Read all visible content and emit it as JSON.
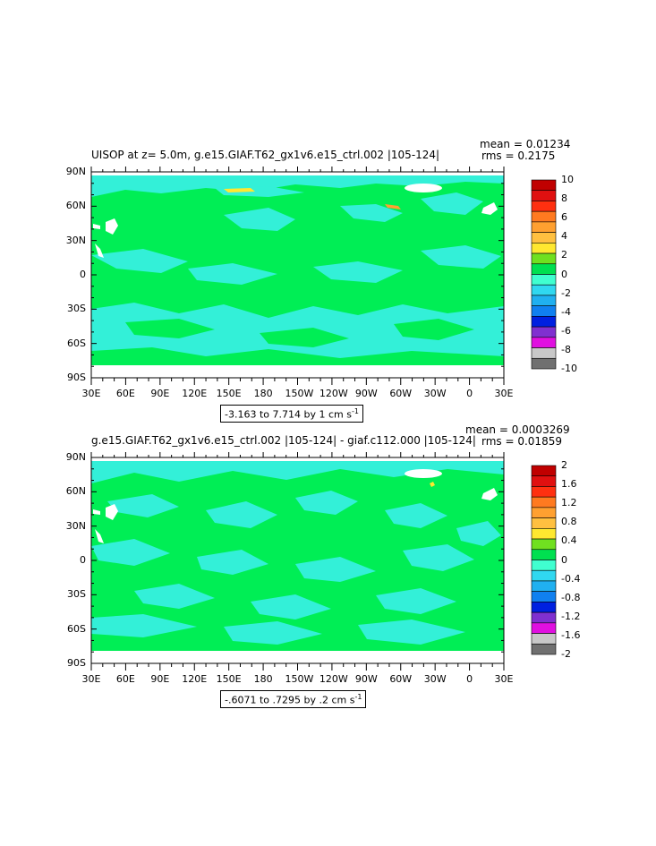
{
  "panels": [
    {
      "title": "UISOP at z=    5.0m, g.e15.GIAF.T62_gx1v6.e15_ctrl.002 |105-124|",
      "mean": "mean = 0.01234",
      "rms": "rms = 0.2175",
      "range": "-3.163 to 7.714 by 1 cm s",
      "range_sup": "-1",
      "colorbar": {
        "labels": [
          "10",
          "8",
          "6",
          "4",
          "2",
          "0",
          "-2",
          "-4",
          "-6",
          "-8",
          "-10"
        ],
        "colors": [
          "#c00000",
          "#e01010",
          "#ff3010",
          "#ff7a20",
          "#ffa030",
          "#ffc040",
          "#ffe830",
          "#70e020",
          "#00e050",
          "#40ffd0",
          "#30d8f0",
          "#20b0f0",
          "#1080f0",
          "#0020e0",
          "#8030d0",
          "#e010e0",
          "#c8c8c8",
          "#707070"
        ]
      }
    },
    {
      "title": "g.e15.GIAF.T62_gx1v6.e15_ctrl.002 |105-124| - giaf.c112.000 |105-124|",
      "mean": "mean = 0.0003269",
      "rms": "rms = 0.01859",
      "range": "-.6071 to .7295 by .2 cm s",
      "range_sup": "-1",
      "colorbar": {
        "labels": [
          "2",
          "1.6",
          "1.2",
          "0.8",
          "0.4",
          "0",
          "-0.4",
          "-0.8",
          "-1.2",
          "-1.6",
          "-2"
        ],
        "colors": [
          "#c00000",
          "#e01010",
          "#ff3010",
          "#ff7a20",
          "#ffa030",
          "#ffc040",
          "#ffe830",
          "#70e020",
          "#00e050",
          "#40ffd0",
          "#30d8f0",
          "#20b0f0",
          "#1080f0",
          "#0020e0",
          "#8030d0",
          "#e010e0",
          "#c8c8c8",
          "#707070"
        ]
      }
    }
  ],
  "axes": {
    "lat_labels": [
      "90N",
      "60N",
      "30N",
      "0",
      "30S",
      "60S",
      "90S"
    ],
    "lon_labels": [
      "30E",
      "60E",
      "90E",
      "120E",
      "150E",
      "180",
      "150W",
      "120W",
      "90W",
      "60W",
      "30W",
      "0",
      "30E"
    ]
  },
  "chart_data": [
    {
      "type": "heatmap",
      "title": "UISOP at z=    5.0m, g.e15.GIAF.T62_gx1v6.e15_ctrl.002 |105-124|",
      "x": [
        "30E",
        "60E",
        "90E",
        "120E",
        "150E",
        "180",
        "150W",
        "120W",
        "90W",
        "60W",
        "30W",
        "0",
        "30E"
      ],
      "y": [
        "90N",
        "60N",
        "30N",
        "0",
        "30S",
        "60S",
        "90S"
      ],
      "xlim": [
        "30E",
        "30E"
      ],
      "ylim": [
        "90S",
        "90N"
      ],
      "contour_levels": [
        -10,
        -8,
        -6,
        -4,
        -2,
        0,
        2,
        4,
        6,
        8,
        10
      ],
      "value_range": [
        -3.163,
        7.714
      ],
      "contour_interval": 1,
      "units": "cm s-1",
      "mean": 0.01234,
      "rms": 0.2175
    },
    {
      "type": "heatmap",
      "title": "g.e15.GIAF.T62_gx1v6.e15_ctrl.002 |105-124| - giaf.c112.000 |105-124|",
      "x": [
        "30E",
        "60E",
        "90E",
        "120E",
        "150E",
        "180",
        "150W",
        "120W",
        "90W",
        "60W",
        "30W",
        "0",
        "30E"
      ],
      "y": [
        "90N",
        "60N",
        "30N",
        "0",
        "30S",
        "60S",
        "90S"
      ],
      "xlim": [
        "30E",
        "30E"
      ],
      "ylim": [
        "90S",
        "90N"
      ],
      "contour_levels": [
        -2,
        -1.6,
        -1.2,
        -0.8,
        -0.4,
        0,
        0.4,
        0.8,
        1.2,
        1.6,
        2
      ],
      "value_range": [
        -0.6071,
        0.7295
      ],
      "contour_interval": 0.2,
      "units": "cm s-1",
      "mean": 0.0003269,
      "rms": 0.01859
    }
  ]
}
